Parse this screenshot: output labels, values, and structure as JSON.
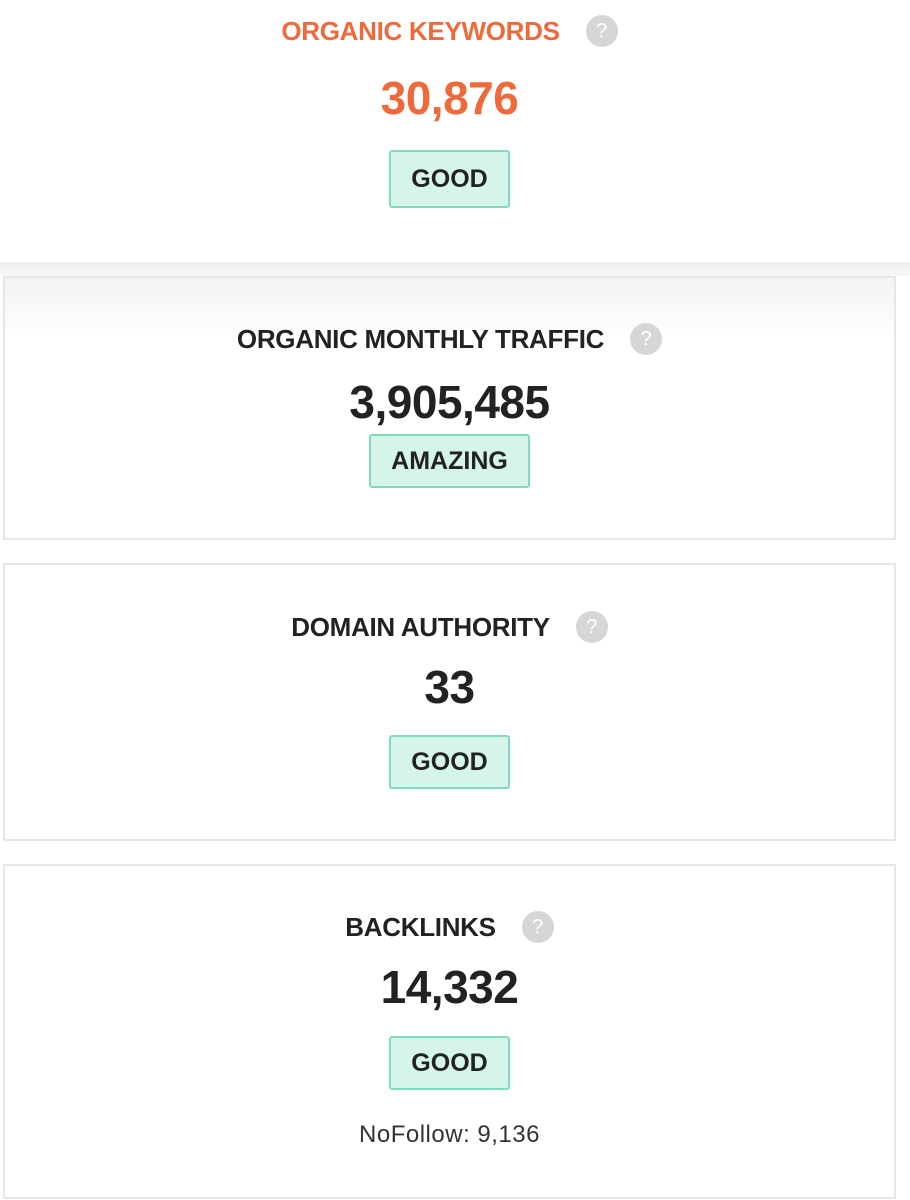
{
  "cards": [
    {
      "title": "ORGANIC KEYWORDS",
      "help": "?",
      "value": "30,876",
      "badge": "GOOD"
    },
    {
      "title": "ORGANIC MONTHLY TRAFFIC",
      "help": "?",
      "value": "3,905,485",
      "badge": "AMAZING"
    },
    {
      "title": "DOMAIN AUTHORITY",
      "help": "?",
      "value": "33",
      "badge": "GOOD"
    },
    {
      "title": "BACKLINKS",
      "help": "?",
      "value": "14,332",
      "badge": "GOOD",
      "note": "NoFollow: 9,136"
    }
  ]
}
